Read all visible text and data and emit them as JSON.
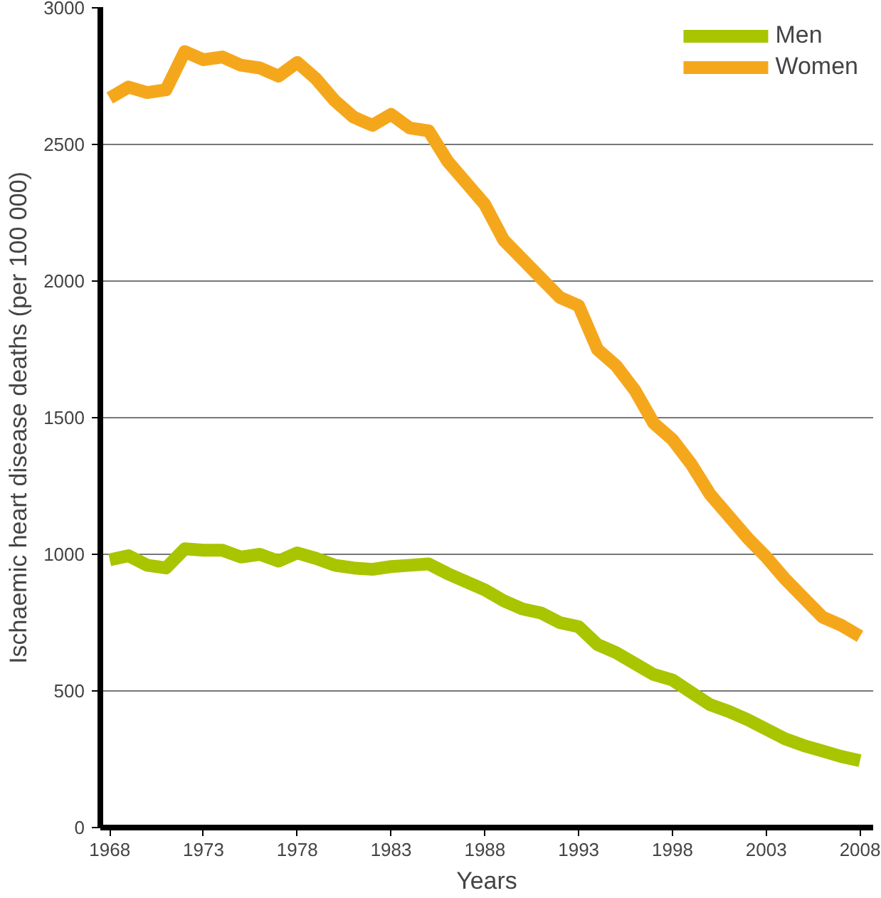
{
  "chart_data": {
    "type": "line",
    "xlabel": "Years",
    "ylabel": "Ischaemic heart disease deaths (per 100 000)",
    "x": [
      1968,
      1969,
      1970,
      1971,
      1972,
      1973,
      1974,
      1975,
      1976,
      1977,
      1978,
      1979,
      1980,
      1981,
      1982,
      1983,
      1984,
      1985,
      1986,
      1987,
      1988,
      1989,
      1990,
      1991,
      1992,
      1993,
      1994,
      1995,
      1996,
      1997,
      1998,
      1999,
      2000,
      2001,
      2002,
      2003,
      2004,
      2005,
      2006,
      2007,
      2008
    ],
    "series": [
      {
        "name": "Men",
        "color": "#a8c500",
        "values": [
          980,
          995,
          960,
          950,
          1020,
          1015,
          1015,
          990,
          1000,
          975,
          1005,
          985,
          960,
          950,
          945,
          955,
          960,
          965,
          930,
          900,
          870,
          830,
          800,
          785,
          750,
          735,
          670,
          640,
          600,
          560,
          540,
          495,
          450,
          425,
          395,
          360,
          325,
          300,
          280,
          260,
          245
        ]
      },
      {
        "name": "Women",
        "color": "#f5a71c",
        "values": [
          2670,
          2710,
          2690,
          2700,
          2840,
          2810,
          2820,
          2790,
          2780,
          2750,
          2800,
          2740,
          2660,
          2600,
          2570,
          2610,
          2560,
          2550,
          2440,
          2360,
          2280,
          2150,
          2080,
          2010,
          1940,
          1910,
          1750,
          1690,
          1600,
          1480,
          1420,
          1330,
          1220,
          1140,
          1060,
          990,
          910,
          840,
          770,
          740,
          700
        ]
      }
    ],
    "xlim": [
      1967.5,
      2008.7
    ],
    "ylim": [
      0,
      3000
    ],
    "xticks": [
      1968,
      1973,
      1978,
      1983,
      1988,
      1993,
      1998,
      2003,
      2008
    ],
    "yticks": [
      0,
      500,
      1000,
      1500,
      2000,
      2500,
      3000
    ],
    "grid": "y",
    "legend": "top right",
    "marker": "none",
    "line_style": "solid"
  }
}
